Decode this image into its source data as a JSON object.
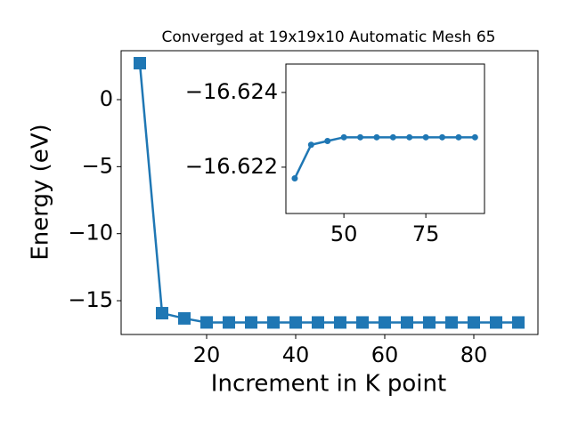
{
  "chart_data": [
    {
      "type": "line",
      "title": "Converged at 19x19x10 Automatic Mesh 65",
      "xlabel": "Increment in K point",
      "ylabel": "Energy (eV)",
      "x": [
        5,
        10,
        15,
        20,
        25,
        30,
        35,
        40,
        45,
        50,
        55,
        60,
        65,
        70,
        75,
        80,
        85,
        90
      ],
      "series": [
        {
          "color": "#1f77b4",
          "marker": "square",
          "values": [
            2.72,
            -15.93,
            -16.32,
            -16.62,
            -16.622,
            -16.622,
            -16.6217,
            -16.6226,
            -16.6227,
            -16.6228,
            -16.6228,
            -16.6228,
            -16.6228,
            -16.6228,
            -16.6228,
            -16.6228,
            -16.6228,
            -16.6228
          ]
        }
      ],
      "xlim": [
        0.8,
        94.4
      ],
      "ylim": [
        -17.52,
        3.65
      ],
      "xticks": [
        20,
        40,
        60,
        80
      ],
      "yticks": [
        0,
        {
          "value": -5,
          "label": "−5"
        },
        {
          "value": -10,
          "label": "−10"
        },
        {
          "value": -15,
          "label": "−15"
        }
      ]
    },
    {
      "type": "line",
      "x": [
        35,
        40,
        45,
        50,
        55,
        60,
        65,
        70,
        75,
        80,
        85,
        90
      ],
      "series": [
        {
          "color": "#1f77b4",
          "marker": "circle",
          "values": [
            -16.6217,
            -16.6226,
            -16.6227,
            -16.6228,
            -16.6228,
            -16.6228,
            -16.6228,
            -16.6228,
            -16.6228,
            -16.6228,
            -16.6228,
            -16.6228
          ]
        }
      ],
      "xlim": [
        32.3,
        92.9
      ],
      "ylim": [
        -16.62076,
        -16.62476
      ],
      "xticks": [
        50,
        75
      ],
      "yticks": [
        {
          "value": -16.624,
          "label": "−16.624"
        },
        {
          "value": -16.622,
          "label": "−16.622"
        }
      ]
    }
  ]
}
